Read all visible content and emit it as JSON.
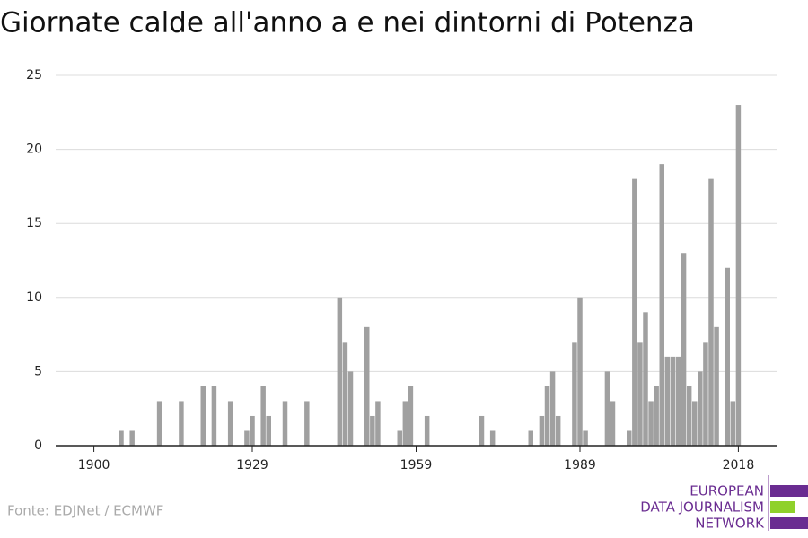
{
  "chart_data": {
    "type": "bar",
    "title": "Giornate calde all'anno a e nei dintorni di Potenza",
    "source": "Fonte: EDJNet / ECMWF",
    "logo": [
      "EUROPEAN",
      "DATA JOURNALISM",
      "NETWORK"
    ],
    "color": "#a0a0a0",
    "grid": true,
    "x": [
      1900,
      1901,
      1902,
      1903,
      1904,
      1905,
      1906,
      1907,
      1908,
      1909,
      1910,
      1911,
      1912,
      1913,
      1914,
      1915,
      1916,
      1917,
      1918,
      1919,
      1920,
      1921,
      1922,
      1923,
      1924,
      1925,
      1926,
      1927,
      1928,
      1929,
      1930,
      1931,
      1932,
      1933,
      1934,
      1935,
      1936,
      1937,
      1938,
      1939,
      1940,
      1941,
      1942,
      1943,
      1944,
      1945,
      1946,
      1947,
      1948,
      1949,
      1950,
      1951,
      1952,
      1953,
      1954,
      1955,
      1956,
      1957,
      1958,
      1959,
      1960,
      1961,
      1962,
      1963,
      1964,
      1965,
      1966,
      1967,
      1968,
      1969,
      1970,
      1971,
      1972,
      1973,
      1974,
      1975,
      1976,
      1977,
      1978,
      1979,
      1980,
      1981,
      1982,
      1983,
      1984,
      1985,
      1986,
      1987,
      1988,
      1989,
      1990,
      1991,
      1992,
      1993,
      1994,
      1995,
      1996,
      1997,
      1998,
      1999,
      2000,
      2001,
      2002,
      2003,
      2004,
      2005,
      2006,
      2007,
      2008,
      2009,
      2010,
      2011,
      2012,
      2013,
      2014,
      2015,
      2016,
      2017,
      2018
    ],
    "values": [
      0,
      0,
      0,
      0,
      0,
      1,
      0,
      1,
      0,
      0,
      0,
      0,
      3,
      0,
      0,
      0,
      3,
      0,
      0,
      0,
      4,
      0,
      4,
      0,
      0,
      3,
      0,
      0,
      1,
      2,
      0,
      4,
      2,
      0,
      0,
      3,
      0,
      0,
      0,
      3,
      0,
      0,
      0,
      0,
      0,
      10,
      7,
      5,
      0,
      0,
      8,
      2,
      3,
      0,
      0,
      0,
      1,
      3,
      4,
      0,
      0,
      2,
      0,
      0,
      0,
      0,
      0,
      0,
      0,
      0,
      0,
      2,
      0,
      1,
      0,
      0,
      0,
      0,
      0,
      0,
      1,
      0,
      2,
      4,
      5,
      2,
      0,
      0,
      7,
      10,
      1,
      0,
      0,
      0,
      5,
      3,
      0,
      0,
      1,
      18,
      7,
      9,
      3,
      4,
      19,
      6,
      6,
      6,
      13,
      4,
      3,
      5,
      7,
      18,
      8,
      0,
      12,
      3,
      23
    ],
    "xlim": [
      1893,
      2025
    ],
    "xticks": [
      1900,
      1929,
      1959,
      1989,
      2018
    ],
    "ylim": [
      0,
      25
    ],
    "yticks": [
      0,
      5,
      10,
      15,
      20,
      25
    ]
  }
}
